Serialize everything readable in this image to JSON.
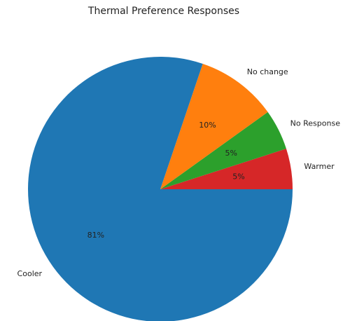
{
  "chart_data": {
    "type": "pie",
    "title": "Thermal Preference Responses",
    "slices": [
      {
        "label": "Warmer",
        "value": 5,
        "pct_text": "5%",
        "color": "#d62728"
      },
      {
        "label": "No Response",
        "value": 5,
        "pct_text": "5%",
        "color": "#2ca02c"
      },
      {
        "label": "No change",
        "value": 10,
        "pct_text": "10%",
        "color": "#ff7f0e"
      },
      {
        "label": "Cooler",
        "value": 81,
        "pct_text": "81%",
        "color": "#1f77b4"
      }
    ],
    "start_angle_deg": 0,
    "direction": "counterclockwise",
    "legend": "none"
  }
}
